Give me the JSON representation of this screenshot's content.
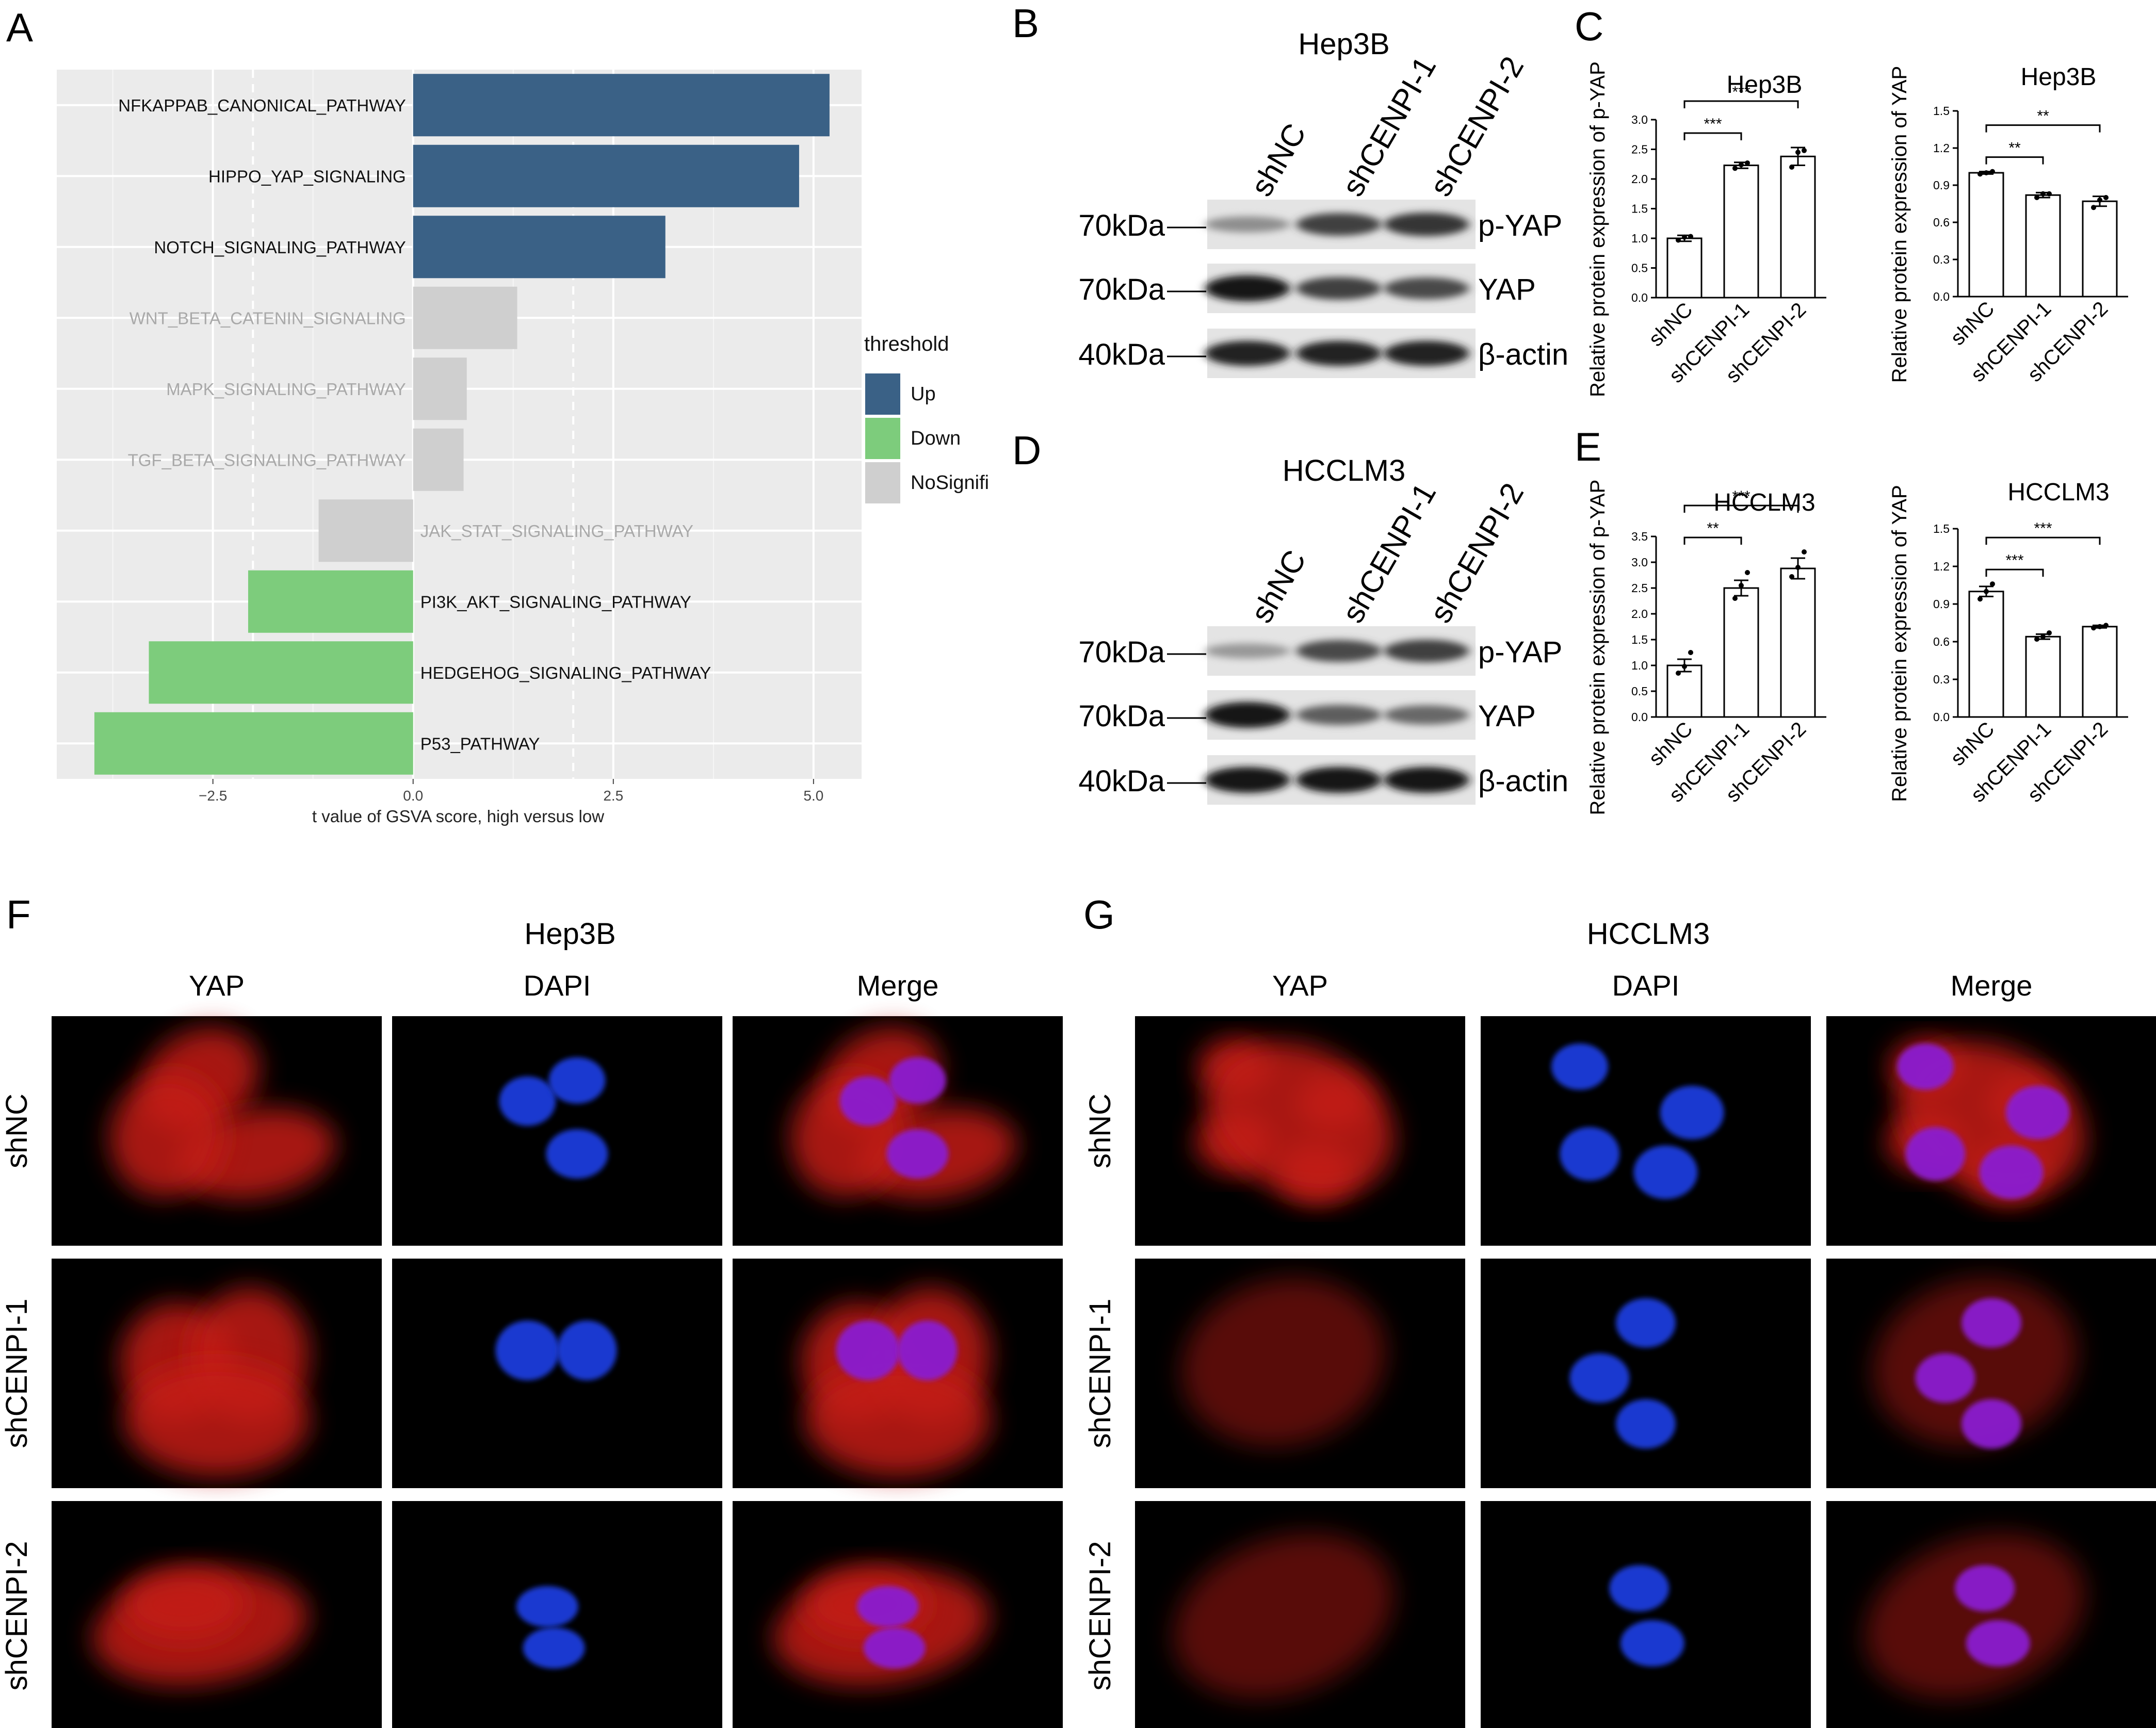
{
  "panel_labels": {
    "A": "A",
    "B": "B",
    "C": "C",
    "D": "D",
    "E": "E",
    "F": "F",
    "G": "G"
  },
  "chart_data": [
    {
      "id": "A",
      "type": "bar",
      "orientation": "horizontal",
      "categories": [
        "NFKAPPAB_CANONICAL_PATHWAY",
        "HIPPO_YAP_SIGNALING",
        "NOTCH_SIGNALING_PATHWAY",
        "WNT_BETA_CATENIN_SIGNALING",
        "MAPK_SIGNALING_PATHWAY",
        "TGF_BETA_SIGNALING_PATHWAY",
        "JAK_STAT_SIGNALING_PATHWAY",
        "PI3K_AKT_SIGNALING_PATHWAY",
        "HEDGEHOG_SIGNALING_PATHWAY",
        "P53_PATHWAY"
      ],
      "values": [
        5.2,
        4.82,
        3.15,
        1.3,
        0.67,
        0.63,
        -1.18,
        -2.06,
        -3.3,
        -3.98
      ],
      "threshold": [
        "Up",
        "Up",
        "Up",
        "NoSignifi",
        "NoSignifi",
        "NoSignifi",
        "NoSignifi",
        "Down",
        "Down",
        "Down"
      ],
      "xlabel": "t value of GSVA score, high versus low",
      "xlim": [
        -4.45,
        5.6
      ],
      "xticks": [
        -2.5,
        0.0,
        2.5,
        5.0
      ],
      "xtick_labels": [
        "−2.5",
        "0.0",
        "2.5",
        "5.0"
      ],
      "cutoff_lines": [
        -2,
        2
      ],
      "grid": true,
      "legend": {
        "title": "threshold",
        "position": "right",
        "items": [
          {
            "label": "Up",
            "color": "#3a6186"
          },
          {
            "label": "Down",
            "color": "#7dcc7c"
          },
          {
            "label": "NoSignifi",
            "color": "#cfcfcf"
          }
        ]
      },
      "colors": {
        "Up": "#3a6186",
        "Down": "#7dcc7c",
        "NoSignifi": "#cfcfcf",
        "panel_bg": "#ebebeb"
      }
    },
    {
      "id": "C1",
      "type": "bar",
      "title": "Hep3B",
      "ylabel": "Relative protein expression of p-YAP",
      "categories": [
        "shNC",
        "shCENPI-1",
        "shCENPI-2"
      ],
      "values": [
        1.0,
        2.23,
        2.38
      ],
      "errors": [
        0.05,
        0.05,
        0.15
      ],
      "points": [
        [
          0.97,
          1.02,
          1.03
        ],
        [
          2.18,
          2.24,
          2.27
        ],
        [
          2.2,
          2.45,
          2.48
        ]
      ],
      "ylim": [
        0,
        3.0
      ],
      "yticks": [
        0.0,
        0.5,
        1.0,
        1.5,
        2.0,
        2.5,
        3.0
      ],
      "ytick_labels": [
        "0.0",
        "0.5",
        "1.0",
        "1.5",
        "2.0",
        "2.5",
        "3.0"
      ],
      "significance": [
        {
          "from": 0,
          "to": 1,
          "label": "***",
          "level": 1
        },
        {
          "from": 0,
          "to": 2,
          "label": "***",
          "level": 2
        }
      ]
    },
    {
      "id": "C2",
      "type": "bar",
      "title": "Hep3B",
      "ylabel": "Relative protein expression of YAP",
      "categories": [
        "shNC",
        "shCENPI-1",
        "shCENPI-2"
      ],
      "values": [
        1.0,
        0.82,
        0.77
      ],
      "errors": [
        0.01,
        0.02,
        0.04
      ],
      "points": [
        [
          0.99,
          1.0,
          1.01
        ],
        [
          0.8,
          0.83,
          0.83
        ],
        [
          0.72,
          0.78,
          0.8
        ]
      ],
      "ylim": [
        0,
        1.5
      ],
      "yticks": [
        0.0,
        0.3,
        0.6,
        0.9,
        1.2,
        1.5
      ],
      "ytick_labels": [
        "0.0",
        "0.3",
        "0.6",
        "0.9",
        "1.2",
        "1.5"
      ],
      "significance": [
        {
          "from": 0,
          "to": 1,
          "label": "**",
          "level": 1
        },
        {
          "from": 0,
          "to": 2,
          "label": "**",
          "level": 2
        }
      ]
    },
    {
      "id": "E1",
      "type": "bar",
      "title": "HCCLM3",
      "ylabel": "Relative protein expression of p-YAP",
      "categories": [
        "shNC",
        "shCENPI-1",
        "shCENPI-2"
      ],
      "values": [
        1.0,
        2.5,
        2.88
      ],
      "errors": [
        0.12,
        0.15,
        0.2
      ],
      "points": [
        [
          0.85,
          0.98,
          1.25
        ],
        [
          2.3,
          2.55,
          2.8
        ],
        [
          2.72,
          2.9,
          3.2
        ]
      ],
      "ylim": [
        0,
        3.5
      ],
      "yticks": [
        0.0,
        0.5,
        1.0,
        1.5,
        2.0,
        2.5,
        3.0,
        3.5
      ],
      "ytick_labels": [
        "0.0",
        "0.5",
        "1.0",
        "1.5",
        "2.0",
        "2.5",
        "3.0",
        "3.5"
      ],
      "significance": [
        {
          "from": 0,
          "to": 1,
          "label": "**",
          "level": 1
        },
        {
          "from": 0,
          "to": 2,
          "label": "***",
          "level": 2
        }
      ]
    },
    {
      "id": "E2",
      "type": "bar",
      "title": "HCCLM3",
      "ylabel": "Relative protein expression of YAP",
      "categories": [
        "shNC",
        "shCENPI-1",
        "shCENPI-2"
      ],
      "values": [
        1.0,
        0.64,
        0.72
      ],
      "errors": [
        0.04,
        0.02,
        0.01
      ],
      "points": [
        [
          0.94,
          1.0,
          1.06
        ],
        [
          0.62,
          0.64,
          0.67
        ],
        [
          0.71,
          0.72,
          0.73
        ]
      ],
      "ylim": [
        0,
        1.5
      ],
      "yticks": [
        0.0,
        0.3,
        0.6,
        0.9,
        1.2,
        1.5
      ],
      "ytick_labels": [
        "0.0",
        "0.3",
        "0.6",
        "0.9",
        "1.2",
        "1.5"
      ],
      "significance": [
        {
          "from": 0,
          "to": 1,
          "label": "***",
          "level": 1
        },
        {
          "from": 0,
          "to": 2,
          "label": "***",
          "level": 2
        }
      ]
    }
  ],
  "western_blots": [
    {
      "id": "B",
      "title": "Hep3B",
      "lanes": [
        "shNC",
        "shCENPI-1",
        "shCENPI-2"
      ],
      "rows": [
        {
          "marker": "70kDa",
          "protein": "p-YAP",
          "intensity": [
            0.35,
            0.75,
            0.8
          ]
        },
        {
          "marker": "70kDa",
          "protein": "YAP",
          "intensity": [
            0.95,
            0.75,
            0.7
          ]
        },
        {
          "marker": "40kDa",
          "protein": "β-actin",
          "intensity": [
            0.9,
            0.9,
            0.9
          ]
        }
      ]
    },
    {
      "id": "D",
      "title": "HCCLM3",
      "lanes": [
        "shNC",
        "shCENPI-1",
        "shCENPI-2"
      ],
      "rows": [
        {
          "marker": "70kDa",
          "protein": "p-YAP",
          "intensity": [
            0.3,
            0.7,
            0.75
          ]
        },
        {
          "marker": "70kDa",
          "protein": "YAP",
          "intensity": [
            0.95,
            0.6,
            0.55
          ]
        },
        {
          "marker": "40kDa",
          "protein": "β-actin",
          "intensity": [
            0.95,
            0.95,
            0.95
          ]
        }
      ]
    }
  ],
  "immunofluorescence": [
    {
      "id": "F",
      "title": "Hep3B",
      "columns": [
        "YAP",
        "DAPI",
        "Merge"
      ],
      "rows": [
        "shNC",
        "shCENPI-1",
        "shCENPI-2"
      ]
    },
    {
      "id": "G",
      "title": "HCCLM3",
      "columns": [
        "YAP",
        "DAPI",
        "Merge"
      ],
      "rows": [
        "shNC",
        "shCENPI-1",
        "shCENPI-2"
      ]
    }
  ],
  "colors": {
    "yap": "#c41a14",
    "dapi": "#1a3cdc",
    "merge": "#8a1fd0"
  }
}
